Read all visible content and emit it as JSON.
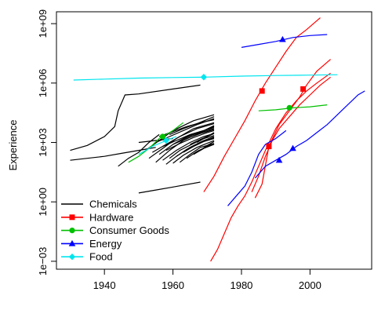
{
  "chart_data": {
    "type": "line",
    "title": "",
    "xlabel": "",
    "ylabel": "Experience",
    "xlim": [
      1926,
      2018
    ],
    "ylim_log10": [
      -3.4,
      9.6
    ],
    "y_scale": "log",
    "x_ticks": [
      1940,
      1960,
      1980,
      2000
    ],
    "x_tick_labels": [
      "1940",
      "1960",
      "1980",
      "2000"
    ],
    "y_ticks_log10": [
      -3,
      0,
      3,
      6,
      9
    ],
    "y_tick_labels": [
      "1e−03",
      "1e+00",
      "1e+03",
      "1e+06",
      "1e+09"
    ],
    "grid": false,
    "legend": {
      "position": "bottom-left",
      "entries": [
        {
          "label": "Chemicals",
          "color": "#000000",
          "marker": "none"
        },
        {
          "label": "Hardware",
          "color": "#ff0000",
          "marker": "square"
        },
        {
          "label": "Consumer Goods",
          "color": "#00c000",
          "marker": "circle"
        },
        {
          "label": "Energy",
          "color": "#0000ff",
          "marker": "triangle"
        },
        {
          "label": "Food",
          "color": "#00e5ee",
          "marker": "diamond"
        }
      ]
    },
    "series": [
      {
        "category": "Chemicals",
        "color": "#000000",
        "lines": [
          [
            [
              1930,
              2.6
            ],
            [
              1935,
              2.85
            ],
            [
              1940,
              3.3
            ],
            [
              1943,
              3.8
            ],
            [
              1944,
              4.6
            ],
            [
              1946,
              5.4
            ],
            [
              1950,
              5.45
            ],
            [
              1960,
              5.7
            ],
            [
              1968,
              5.9
            ]
          ],
          [
            [
              1930,
              2.1
            ],
            [
              1935,
              2.2
            ],
            [
              1940,
              2.3
            ],
            [
              1945,
              2.45
            ],
            [
              1950,
              2.6
            ],
            [
              1955,
              2.75
            ]
          ],
          [
            [
              1944,
              1.8
            ],
            [
              1947,
              2.2
            ],
            [
              1950,
              2.5
            ],
            [
              1953,
              3.0
            ],
            [
              1956,
              3.4
            ]
          ],
          [
            [
              1950,
              0.45
            ],
            [
              1955,
              0.6
            ],
            [
              1960,
              0.75
            ],
            [
              1968,
              1.0
            ]
          ],
          [
            [
              1950,
              3.0
            ],
            [
              1955,
              3.1
            ],
            [
              1960,
              3.2
            ]
          ],
          [
            [
              1952,
              2.6
            ],
            [
              1956,
              3.1
            ],
            [
              1960,
              3.6
            ],
            [
              1966,
              4.1
            ],
            [
              1972,
              4.4
            ]
          ],
          [
            [
              1953,
              2.2
            ],
            [
              1957,
              2.7
            ],
            [
              1961,
              3.2
            ],
            [
              1966,
              3.7
            ],
            [
              1972,
              4.0
            ]
          ],
          [
            [
              1954,
              2.5
            ],
            [
              1958,
              2.9
            ],
            [
              1962,
              3.3
            ],
            [
              1967,
              3.7
            ],
            [
              1972,
              3.95
            ]
          ],
          [
            [
              1955,
              2.0
            ],
            [
              1959,
              2.6
            ],
            [
              1963,
              3.1
            ],
            [
              1968,
              3.5
            ],
            [
              1972,
              3.7
            ]
          ],
          [
            [
              1955,
              3.0
            ],
            [
              1959,
              3.3
            ],
            [
              1963,
              3.6
            ],
            [
              1967,
              3.9
            ],
            [
              1972,
              4.2
            ]
          ],
          [
            [
              1956,
              2.4
            ],
            [
              1960,
              2.9
            ],
            [
              1964,
              3.3
            ],
            [
              1968,
              3.55
            ],
            [
              1972,
              3.75
            ]
          ],
          [
            [
              1956,
              3.3
            ],
            [
              1960,
              3.55
            ],
            [
              1964,
              3.8
            ],
            [
              1968,
              4.0
            ],
            [
              1972,
              4.15
            ]
          ],
          [
            [
              1957,
              2.1
            ],
            [
              1961,
              2.6
            ],
            [
              1965,
              3.0
            ],
            [
              1969,
              3.3
            ],
            [
              1972,
              3.45
            ]
          ],
          [
            [
              1957,
              2.8
            ],
            [
              1961,
              3.1
            ],
            [
              1965,
              3.4
            ],
            [
              1969,
              3.6
            ],
            [
              1972,
              3.8
            ]
          ],
          [
            [
              1958,
              1.9
            ],
            [
              1961,
              2.3
            ],
            [
              1965,
              2.75
            ],
            [
              1969,
              3.1
            ],
            [
              1972,
              3.3
            ]
          ],
          [
            [
              1958,
              2.6
            ],
            [
              1962,
              2.95
            ],
            [
              1966,
              3.25
            ],
            [
              1970,
              3.5
            ],
            [
              1972,
              3.6
            ]
          ],
          [
            [
              1959,
              2.2
            ],
            [
              1962,
              2.6
            ],
            [
              1966,
              2.95
            ],
            [
              1969,
              3.2
            ],
            [
              1972,
              3.35
            ]
          ],
          [
            [
              1959,
              3.4
            ],
            [
              1963,
              3.7
            ],
            [
              1967,
              3.95
            ],
            [
              1972,
              4.3
            ]
          ],
          [
            [
              1960,
              1.95
            ],
            [
              1963,
              2.35
            ],
            [
              1967,
              2.75
            ],
            [
              1972,
              3.1
            ]
          ],
          [
            [
              1960,
              2.9
            ],
            [
              1964,
              3.2
            ],
            [
              1968,
              3.45
            ],
            [
              1972,
              3.65
            ]
          ],
          [
            [
              1961,
              2.3
            ],
            [
              1964,
              2.65
            ],
            [
              1968,
              3.0
            ],
            [
              1972,
              3.2
            ]
          ],
          [
            [
              1962,
              2.0
            ],
            [
              1965,
              2.4
            ],
            [
              1968,
              2.75
            ],
            [
              1972,
              2.95
            ]
          ],
          [
            [
              1962,
              3.1
            ],
            [
              1966,
              3.4
            ],
            [
              1969,
              3.6
            ],
            [
              1972,
              3.85
            ]
          ],
          [
            [
              1963,
              2.5
            ],
            [
              1966,
              2.8
            ],
            [
              1969,
              3.05
            ],
            [
              1972,
              3.25
            ]
          ],
          [
            [
              1964,
              2.2
            ],
            [
              1967,
              2.55
            ],
            [
              1970,
              2.8
            ],
            [
              1972,
              2.95
            ]
          ],
          [
            [
              1965,
              2.9
            ],
            [
              1968,
              3.15
            ],
            [
              1972,
              3.45
            ]
          ],
          [
            [
              1966,
              2.4
            ],
            [
              1969,
              2.7
            ],
            [
              1972,
              2.9
            ]
          ],
          [
            [
              1967,
              3.0
            ],
            [
              1970,
              3.3
            ],
            [
              1972,
              3.5
            ]
          ],
          [
            [
              1968,
              2.6
            ],
            [
              1970,
              2.85
            ],
            [
              1972,
              3.05
            ]
          ]
        ]
      },
      {
        "category": "Hardware",
        "color": "#ff0000",
        "markers": [
          [
            1986,
            5.6
          ],
          [
            1988,
            2.8
          ],
          [
            1998,
            5.7
          ]
        ],
        "lines": [
          [
            [
              1969,
              0.5
            ],
            [
              1972,
              1.3
            ],
            [
              1975,
              2.3
            ],
            [
              1978,
              3.2
            ],
            [
              1981,
              4.1
            ],
            [
              1984,
              5.1
            ],
            [
              1987,
              6.0
            ],
            [
              1990,
              6.8
            ],
            [
              1993,
              7.6
            ],
            [
              1996,
              8.3
            ],
            [
              1999,
              8.7
            ],
            [
              2003,
              9.3
            ]
          ],
          [
            [
              1971,
              -3.0
            ],
            [
              1973,
              -2.4
            ],
            [
              1975,
              -1.6
            ],
            [
              1977,
              -0.8
            ],
            [
              1979,
              -0.2
            ],
            [
              1981,
              0.3
            ],
            [
              1983,
              1.0
            ],
            [
              1985,
              1.8
            ],
            [
              1987,
              2.6
            ],
            [
              1990,
              3.7
            ],
            [
              1993,
              4.5
            ],
            [
              1996,
              5.1
            ],
            [
              1999,
              5.6
            ],
            [
              2002,
              6.0
            ],
            [
              2006,
              6.5
            ]
          ],
          [
            [
              1983,
              0.5
            ],
            [
              1985,
              1.3
            ],
            [
              1987,
              2.3
            ],
            [
              1989,
              3.1
            ],
            [
              1991,
              3.7
            ],
            [
              1994,
              4.3
            ],
            [
              1997,
              4.9
            ],
            [
              2000,
              5.4
            ],
            [
              2003,
              5.9
            ],
            [
              2006,
              6.3
            ]
          ],
          [
            [
              1984,
              0.2
            ],
            [
              1986,
              0.9
            ],
            [
              1988,
              2.8
            ],
            [
              1991,
              3.9
            ],
            [
              1994,
              4.6
            ],
            [
              1997,
              5.3
            ],
            [
              1999,
              5.9
            ],
            [
              2002,
              6.6
            ],
            [
              2006,
              7.2
            ]
          ]
        ]
      },
      {
        "category": "Consumer Goods",
        "color": "#00c000",
        "markers": [
          [
            1957,
            3.3
          ],
          [
            1994,
            4.75
          ]
        ],
        "lines": [
          [
            [
              1947,
              2.0
            ],
            [
              1950,
              2.3
            ],
            [
              1953,
              2.7
            ],
            [
              1956,
              3.2
            ],
            [
              1960,
              3.6
            ],
            [
              1963,
              4.0
            ]
          ],
          [
            [
              1985,
              4.6
            ],
            [
              1990,
              4.65
            ],
            [
              1995,
              4.75
            ],
            [
              2000,
              4.8
            ],
            [
              2005,
              4.9
            ]
          ]
        ]
      },
      {
        "category": "Energy",
        "color": "#0000ff",
        "markers": [
          [
            1992,
            8.2
          ],
          [
            1991,
            2.1
          ],
          [
            1995,
            2.7
          ]
        ],
        "lines": [
          [
            [
              1980,
              7.8
            ],
            [
              1985,
              7.95
            ],
            [
              1990,
              8.1
            ],
            [
              1995,
              8.3
            ],
            [
              2000,
              8.4
            ],
            [
              2005,
              8.45
            ]
          ],
          [
            [
              1976,
              -0.2
            ],
            [
              1978,
              0.2
            ],
            [
              1981,
              0.8
            ],
            [
              1983,
              1.5
            ],
            [
              1985,
              2.4
            ],
            [
              1987,
              2.9
            ],
            [
              1990,
              3.2
            ],
            [
              1993,
              3.6
            ]
          ],
          [
            [
              1984,
              1.2
            ],
            [
              1987,
              1.8
            ],
            [
              1990,
              2.1
            ],
            [
              1993,
              2.4
            ],
            [
              1996,
              2.8
            ],
            [
              1999,
              3.1
            ],
            [
              2002,
              3.5
            ],
            [
              2005,
              3.9
            ],
            [
              2008,
              4.4
            ],
            [
              2011,
              4.9
            ],
            [
              2014,
              5.4
            ],
            [
              2016,
              5.6
            ]
          ]
        ]
      },
      {
        "category": "Food",
        "color": "#00e5ee",
        "markers": [
          [
            1958,
            3.1
          ],
          [
            1969,
            6.3
          ]
        ],
        "lines": [
          [
            [
              1931,
              6.15
            ],
            [
              1940,
              6.2
            ],
            [
              1950,
              6.25
            ],
            [
              1960,
              6.28
            ],
            [
              1969,
              6.3
            ],
            [
              1980,
              6.35
            ],
            [
              1990,
              6.38
            ],
            [
              2000,
              6.4
            ],
            [
              2008,
              6.42
            ]
          ],
          [
            [
              1950,
              2.4
            ],
            [
              1954,
              2.8
            ],
            [
              1958,
              3.1
            ],
            [
              1961,
              3.3
            ]
          ]
        ]
      }
    ]
  }
}
